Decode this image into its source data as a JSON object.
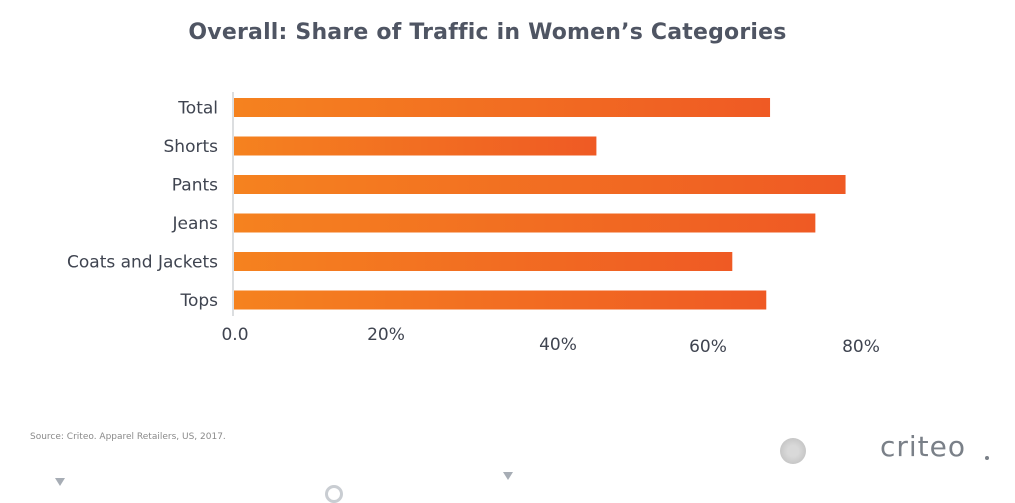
{
  "chart_data": {
    "type": "bar",
    "orientation": "horizontal",
    "title": "Overall: Share of Traffic in Women’s Categories",
    "categories": [
      "Total",
      "Shorts",
      "Pants",
      "Jeans",
      "Coats and Jackets",
      "Tops"
    ],
    "values": [
      71,
      48,
      81,
      77,
      66,
      70.5
    ],
    "x_ticks": [
      "0.0",
      "20%",
      "40%",
      "60%",
      "80%"
    ],
    "xlim": [
      0,
      80
    ],
    "xlabel": "",
    "ylabel": "",
    "grid": false,
    "legend": "none",
    "bar_color_start": "#f5821f",
    "bar_color_end": "#ef5a24"
  },
  "footer": {
    "source": "Source: Criteo. Apparel Retailers, US, 2017.",
    "logo": "criteo"
  }
}
